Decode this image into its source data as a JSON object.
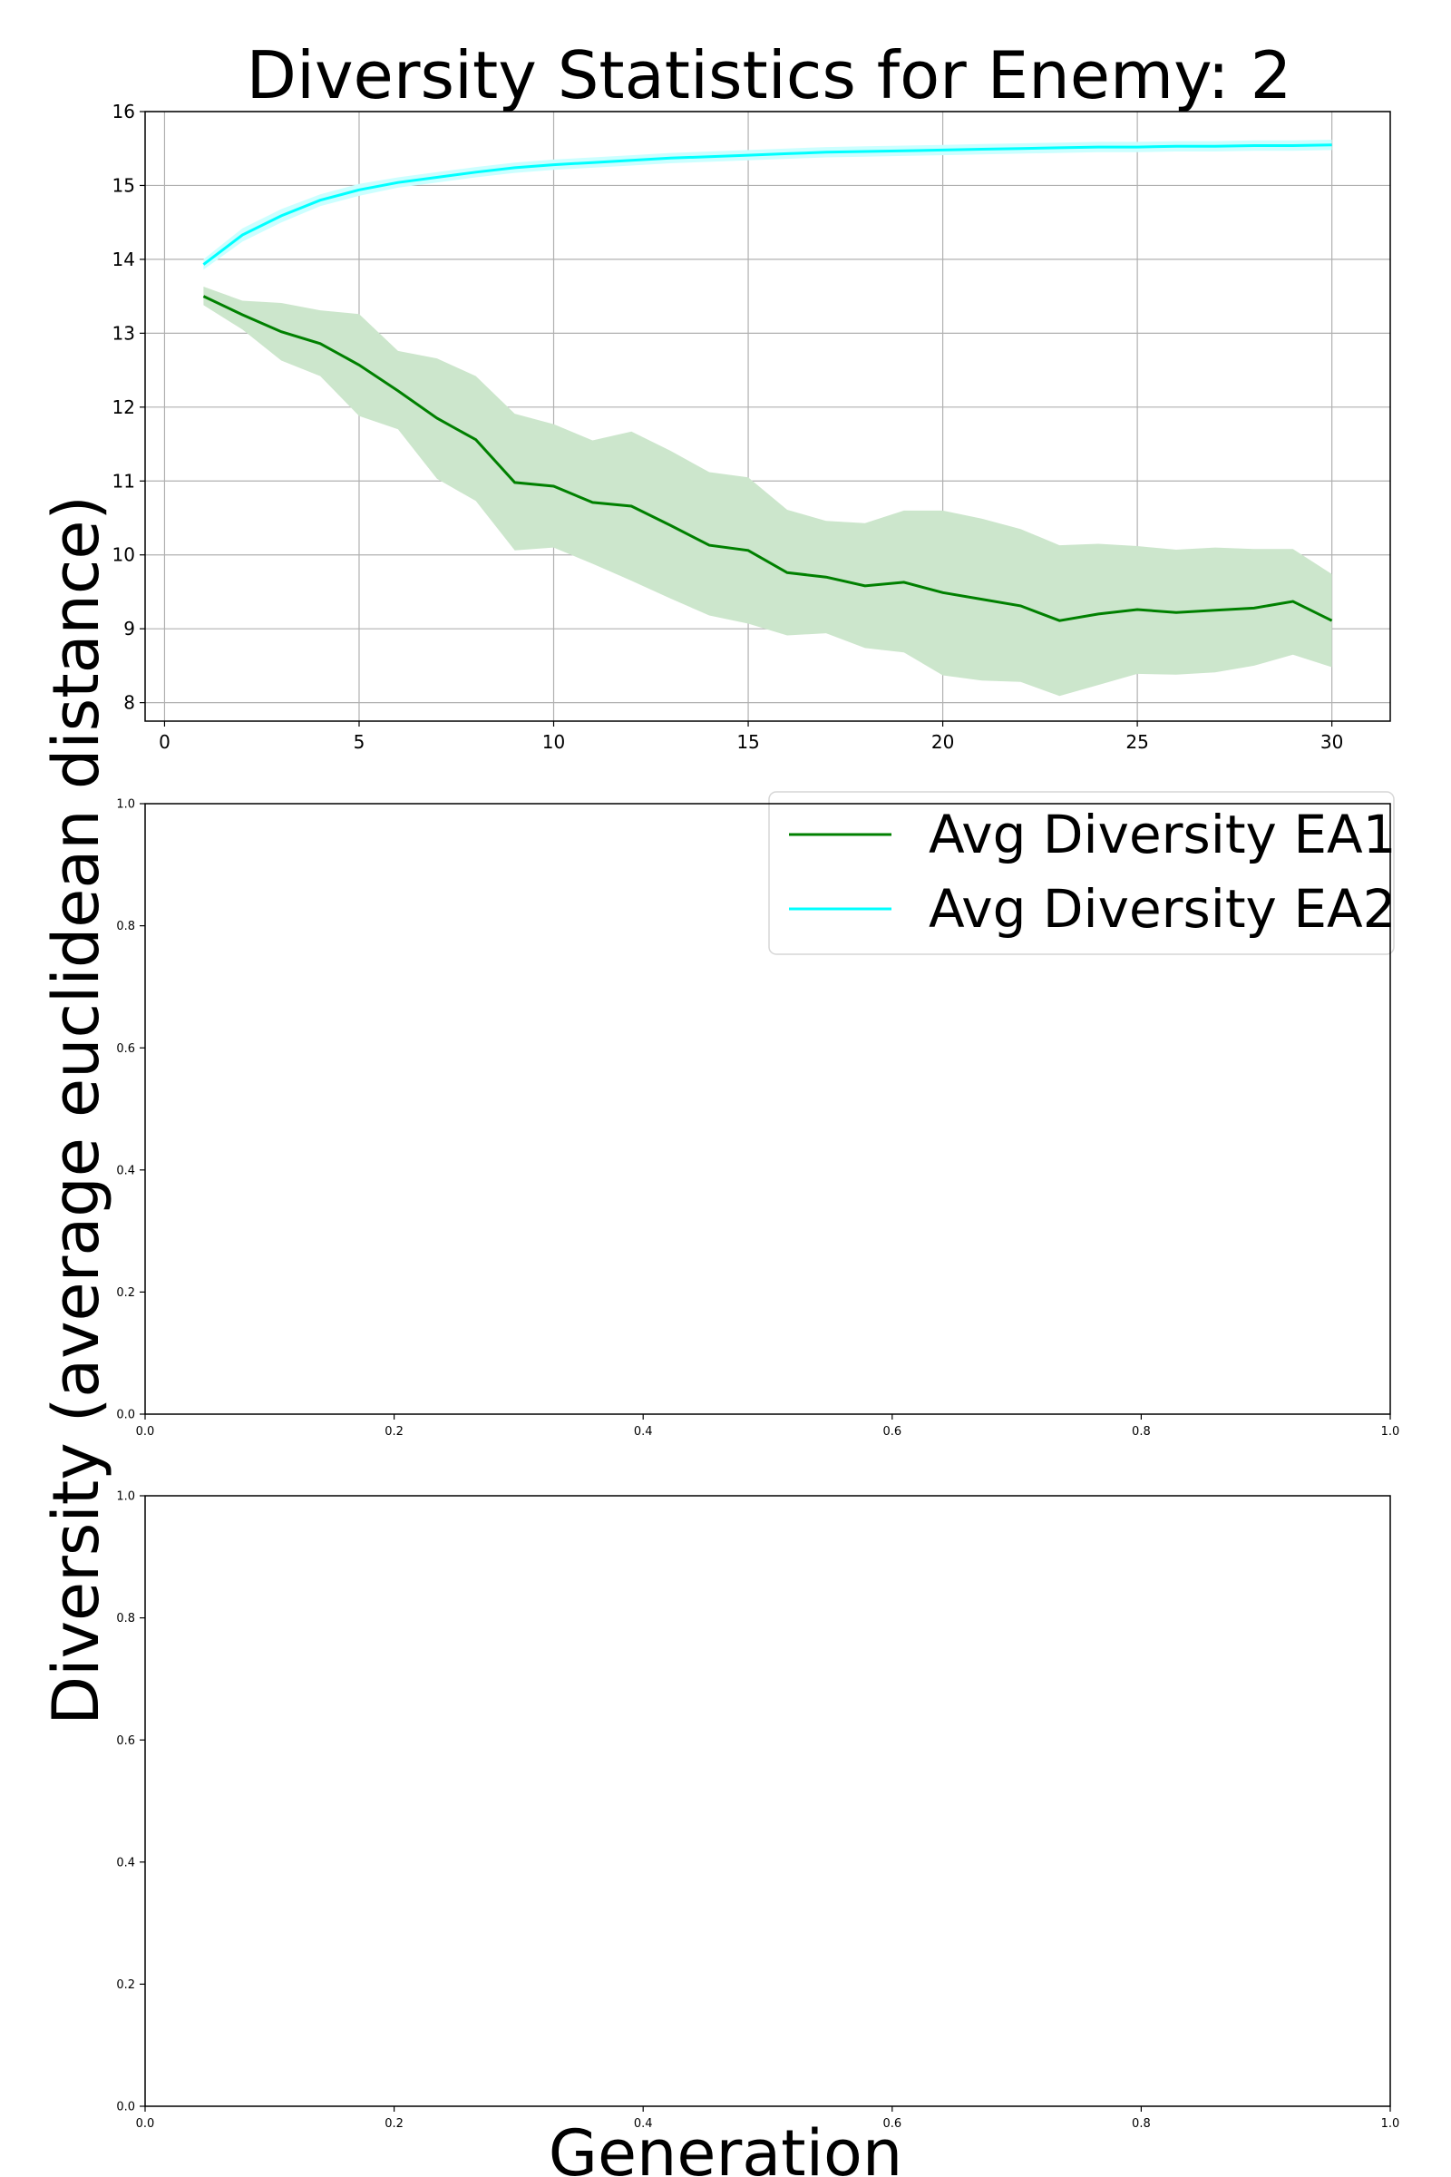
{
  "figure": {
    "title": "Diversity Statistics for Enemy: 2",
    "ylabel": "Diversity (average euclidean distance)",
    "xlabel": "Generation"
  },
  "colors": {
    "ea1": "#008000",
    "ea1_band": "#cce6cc",
    "ea2": "#00ffff",
    "ea2_band": "#ccffff",
    "grid": "#b0b0b0",
    "axis": "#000000"
  },
  "chart_data": [
    {
      "type": "line",
      "title": "Diversity Statistics for Enemy: 2",
      "xlim": [
        -0.5,
        31.5
      ],
      "ylim": [
        7.75,
        16
      ],
      "xticks": [
        0,
        5,
        10,
        15,
        20,
        25,
        30
      ],
      "yticks": [
        8,
        9,
        10,
        11,
        12,
        13,
        14,
        15,
        16
      ],
      "grid": true,
      "legend": "upper-right",
      "x": [
        1,
        2,
        3,
        4,
        5,
        6,
        7,
        8,
        9,
        10,
        11,
        12,
        13,
        14,
        15,
        16,
        17,
        18,
        19,
        20,
        21,
        22,
        23,
        24,
        25,
        26,
        27,
        28,
        29,
        30
      ],
      "series": [
        {
          "name": "Avg Diversity EA1",
          "color": "#008000",
          "values": [
            13.5,
            13.25,
            13.02,
            12.86,
            12.57,
            12.22,
            11.85,
            11.56,
            10.98,
            10.93,
            10.71,
            10.66,
            10.4,
            10.13,
            10.06,
            9.76,
            9.7,
            9.58,
            9.63,
            9.49,
            9.4,
            9.31,
            9.11,
            9.2,
            9.26,
            9.22,
            9.25,
            9.28,
            9.37,
            9.11
          ],
          "lower": [
            13.38,
            13.05,
            12.63,
            12.42,
            11.88,
            11.7,
            11.03,
            10.73,
            10.06,
            10.1,
            9.88,
            9.65,
            9.41,
            9.18,
            9.07,
            8.91,
            8.94,
            8.74,
            8.68,
            8.37,
            8.3,
            8.28,
            8.09,
            8.24,
            8.39,
            8.38,
            8.41,
            8.5,
            8.65,
            8.48
          ],
          "upper": [
            13.63,
            13.44,
            13.41,
            13.31,
            13.26,
            12.76,
            12.66,
            12.42,
            11.91,
            11.77,
            11.55,
            11.67,
            11.41,
            11.12,
            11.05,
            10.61,
            10.46,
            10.43,
            10.6,
            10.6,
            10.49,
            10.35,
            10.13,
            10.15,
            10.12,
            10.07,
            10.1,
            10.08,
            10.08,
            9.74
          ]
        },
        {
          "name": "Avg Diversity EA2",
          "color": "#00ffff",
          "values": [
            13.93,
            14.33,
            14.59,
            14.8,
            14.94,
            15.04,
            15.11,
            15.18,
            15.24,
            15.28,
            15.31,
            15.34,
            15.37,
            15.39,
            15.41,
            15.43,
            15.45,
            15.46,
            15.47,
            15.48,
            15.49,
            15.5,
            15.51,
            15.52,
            15.52,
            15.53,
            15.53,
            15.54,
            15.54,
            15.55
          ],
          "lower": [
            13.86,
            14.24,
            14.5,
            14.72,
            14.86,
            14.97,
            15.04,
            15.11,
            15.17,
            15.21,
            15.24,
            15.27,
            15.3,
            15.32,
            15.34,
            15.36,
            15.38,
            15.39,
            15.4,
            15.41,
            15.42,
            15.43,
            15.44,
            15.45,
            15.45,
            15.46,
            15.46,
            15.47,
            15.47,
            15.48
          ],
          "upper": [
            14.0,
            14.42,
            14.68,
            14.88,
            15.02,
            15.11,
            15.18,
            15.25,
            15.31,
            15.35,
            15.38,
            15.41,
            15.44,
            15.46,
            15.48,
            15.5,
            15.52,
            15.53,
            15.54,
            15.55,
            15.56,
            15.57,
            15.58,
            15.59,
            15.59,
            15.6,
            15.6,
            15.61,
            15.61,
            15.62
          ]
        }
      ]
    },
    {
      "type": "line",
      "xlim": [
        0,
        1
      ],
      "ylim": [
        0,
        1
      ],
      "xticks": [
        "0.0",
        "0.2",
        "0.4",
        "0.6",
        "0.8",
        "1.0"
      ],
      "yticks": [
        "0.0",
        "0.2",
        "0.4",
        "0.6",
        "0.8",
        "1.0"
      ],
      "grid": false,
      "series": []
    },
    {
      "type": "line",
      "xlim": [
        0,
        1
      ],
      "ylim": [
        0,
        1
      ],
      "xticks": [
        "0.0",
        "0.2",
        "0.4",
        "0.6",
        "0.8",
        "1.0"
      ],
      "yticks": [
        "0.0",
        "0.2",
        "0.4",
        "0.6",
        "0.8",
        "1.0"
      ],
      "grid": false,
      "series": []
    }
  ]
}
